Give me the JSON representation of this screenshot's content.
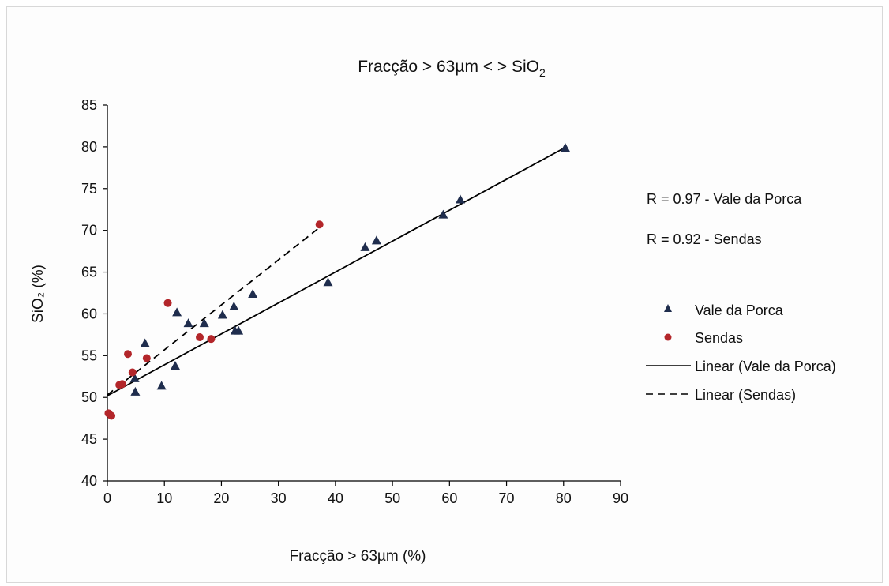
{
  "chart_data": {
    "type": "scatter",
    "title_main": "Fracção > 63µm < > SiO",
    "title_sub": "2",
    "xlabel": "Fracção > 63µm (%)",
    "ylabel": "SiO₂ (%)",
    "xlim": [
      0,
      90
    ],
    "ylim": [
      40,
      85
    ],
    "x_ticks": [
      0,
      10,
      20,
      30,
      40,
      50,
      60,
      70,
      80,
      90
    ],
    "y_ticks": [
      40,
      45,
      50,
      55,
      60,
      65,
      70,
      75,
      80,
      85
    ],
    "grid": false,
    "legend_position": "right",
    "series": [
      {
        "name": "Vale da Porca",
        "marker": "triangle",
        "color": "#1f2d4d",
        "points": [
          [
            4.8,
            52.3
          ],
          [
            4.9,
            50.7
          ],
          [
            6.6,
            56.5
          ],
          [
            9.5,
            51.4
          ],
          [
            11.9,
            53.8
          ],
          [
            12.2,
            60.2
          ],
          [
            14.2,
            58.9
          ],
          [
            17.0,
            58.9
          ],
          [
            20.2,
            59.9
          ],
          [
            22.2,
            60.9
          ],
          [
            22.4,
            58.0
          ],
          [
            23.0,
            58.0
          ],
          [
            25.5,
            62.4
          ],
          [
            38.7,
            63.8
          ],
          [
            45.2,
            68.0
          ],
          [
            47.2,
            68.8
          ],
          [
            58.9,
            71.9
          ],
          [
            61.9,
            73.7
          ],
          [
            80.3,
            79.9
          ]
        ]
      },
      {
        "name": "Sendas",
        "marker": "circle",
        "color": "#b3262a",
        "points": [
          [
            0.2,
            48.1
          ],
          [
            0.7,
            47.8
          ],
          [
            2.1,
            51.5
          ],
          [
            2.6,
            51.6
          ],
          [
            3.6,
            55.2
          ],
          [
            4.4,
            53.0
          ],
          [
            6.9,
            54.7
          ],
          [
            10.6,
            61.3
          ],
          [
            16.2,
            57.2
          ],
          [
            18.2,
            57.0
          ],
          [
            37.2,
            70.7
          ]
        ]
      }
    ],
    "trendlines": [
      {
        "name": "Linear (Vale da Porca)",
        "style": "solid",
        "color": "#000000",
        "x": [
          0,
          80.5
        ],
        "y": [
          50.2,
          80.0
        ]
      },
      {
        "name": "Linear (Sendas)",
        "style": "dashed",
        "color": "#000000",
        "x": [
          0,
          37.5
        ],
        "y": [
          50.3,
          70.5
        ]
      }
    ],
    "annotations": [
      "R = 0.97 - Vale da Porca",
      "R = 0.92 - Sendas"
    ],
    "legend": [
      "Vale da Porca",
      "Sendas",
      "Linear (Vale da Porca)",
      "Linear (Sendas)"
    ]
  }
}
